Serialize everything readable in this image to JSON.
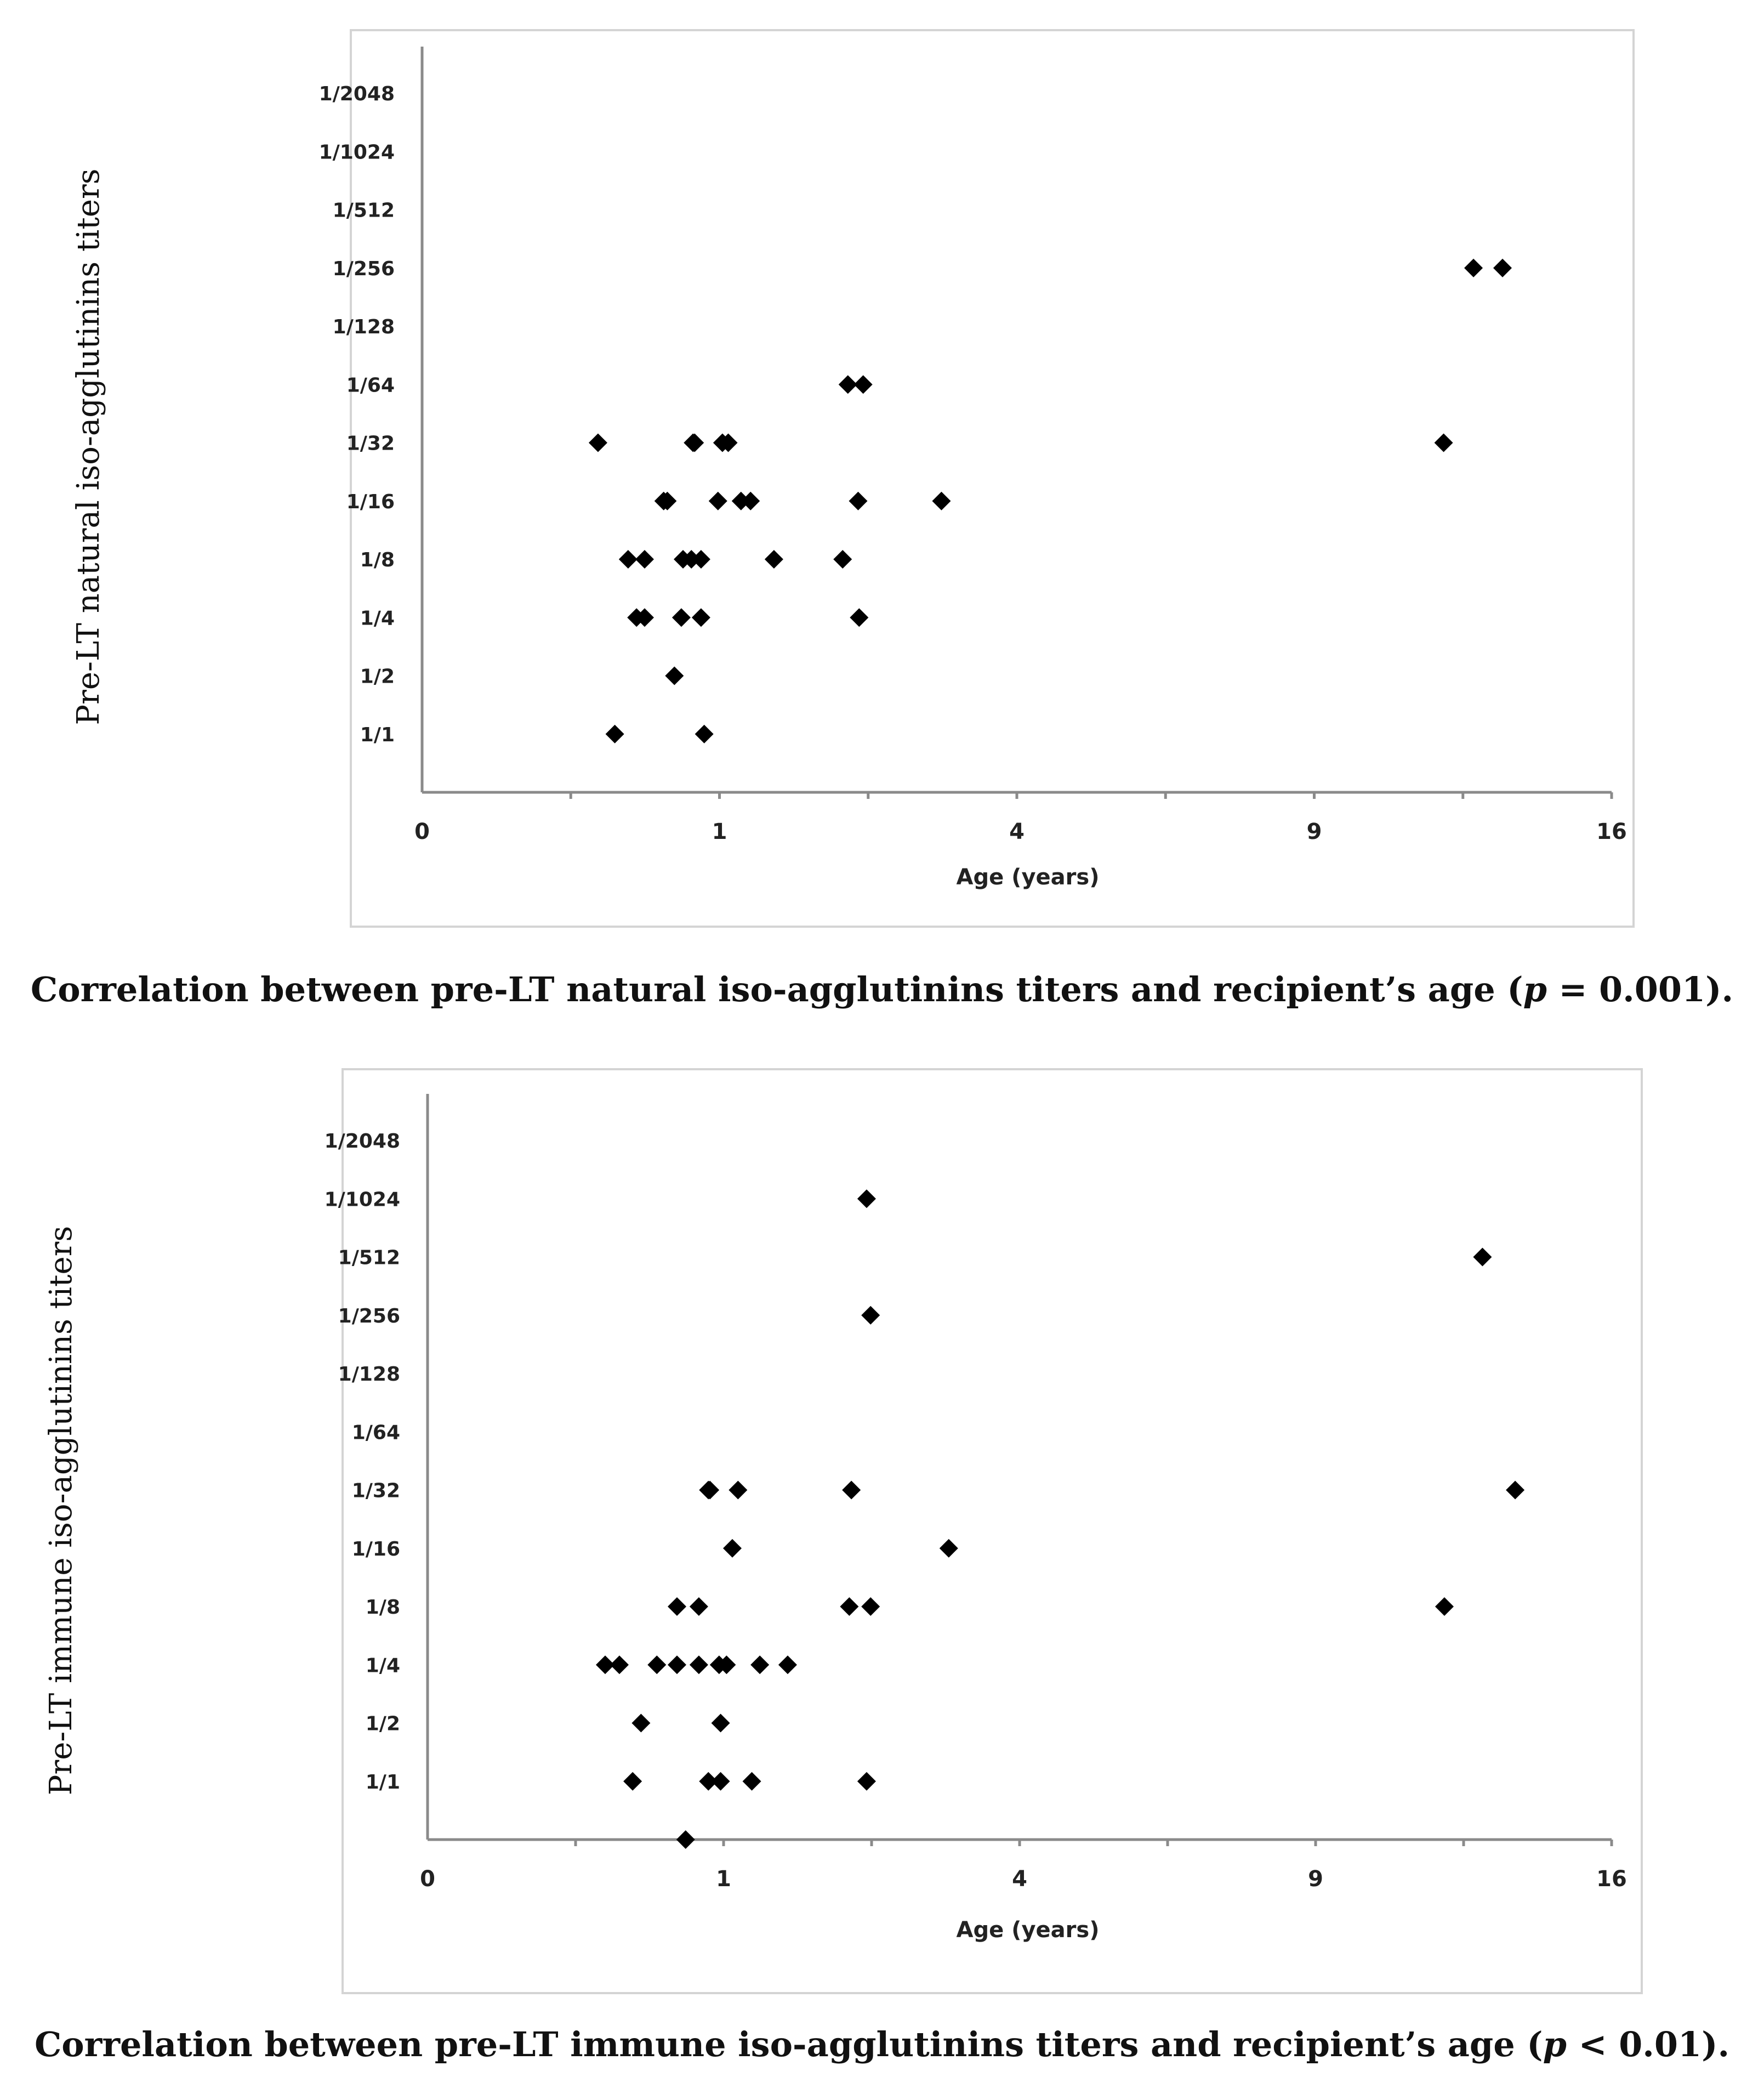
{
  "chart_data": [
    {
      "type": "scatter",
      "marker": "diamond",
      "ylabel": "Pre-LT natural iso-agglutinins titers",
      "xlabel": "Age (years)",
      "x_ticks": [
        "0",
        "1",
        "4",
        "9",
        "16"
      ],
      "x_scale": "sqrt",
      "xlim": [
        0,
        16
      ],
      "y_ticks": [
        "1/1",
        "1/2",
        "1/4",
        "1/8",
        "1/16",
        "1/32",
        "1/64",
        "1/128",
        "1/256",
        "1/512",
        "1/1024",
        "1/2048"
      ],
      "y_scale": "titer-index (1/1 = 1 … 1/2048 = 12, 0 = below 1/1)",
      "ylim": [
        0,
        12.8
      ],
      "points": [
        {
          "x": 0.35,
          "y": 6
        },
        {
          "x": 0.83,
          "y": 6
        },
        {
          "x": 0.84,
          "y": 6
        },
        {
          "x": 1.02,
          "y": 6
        },
        {
          "x": 1.06,
          "y": 6
        },
        {
          "x": 2.05,
          "y": 7
        },
        {
          "x": 2.2,
          "y": 7
        },
        {
          "x": 12.5,
          "y": 9
        },
        {
          "x": 13.2,
          "y": 9
        },
        {
          "x": 11.8,
          "y": 6
        },
        {
          "x": 0.66,
          "y": 5
        },
        {
          "x": 0.68,
          "y": 5
        },
        {
          "x": 0.99,
          "y": 5
        },
        {
          "x": 1.15,
          "y": 5
        },
        {
          "x": 1.22,
          "y": 5
        },
        {
          "x": 2.15,
          "y": 5
        },
        {
          "x": 3.05,
          "y": 5
        },
        {
          "x": 0.48,
          "y": 4
        },
        {
          "x": 0.56,
          "y": 4
        },
        {
          "x": 0.77,
          "y": 4
        },
        {
          "x": 0.82,
          "y": 4
        },
        {
          "x": 0.88,
          "y": 4
        },
        {
          "x": 1.4,
          "y": 4
        },
        {
          "x": 2.0,
          "y": 4
        },
        {
          "x": 0.52,
          "y": 3
        },
        {
          "x": 0.56,
          "y": 3
        },
        {
          "x": 0.76,
          "y": 3
        },
        {
          "x": 0.88,
          "y": 3
        },
        {
          "x": 2.16,
          "y": 3
        },
        {
          "x": 0.72,
          "y": 2
        },
        {
          "x": 0.42,
          "y": 1
        },
        {
          "x": 0.9,
          "y": 1
        }
      ],
      "caption": {
        "text": "Correlation between pre-LT natural iso-agglutinins titers and recipient’s age (",
        "p": "p",
        "rest": " = 0.001)."
      }
    },
    {
      "type": "scatter",
      "marker": "diamond",
      "ylabel": "Pre-LT immune iso-agglutinins titers",
      "xlabel": "Age (years)",
      "x_ticks": [
        "0",
        "1",
        "4",
        "9",
        "16"
      ],
      "x_scale": "sqrt",
      "xlim": [
        0,
        16
      ],
      "y_ticks": [
        "1/1",
        "1/2",
        "1/4",
        "1/8",
        "1/16",
        "1/32",
        "1/64",
        "1/128",
        "1/256",
        "1/512",
        "1/1024",
        "1/2048"
      ],
      "y_scale": "titer-index (1/1 = 1 … 1/2048 = 12, 0 = below 1/1)",
      "ylim": [
        0,
        12.8
      ],
      "points": [
        {
          "x": 2.2,
          "y": 11
        },
        {
          "x": 12.7,
          "y": 10
        },
        {
          "x": 2.24,
          "y": 9
        },
        {
          "x": 0.9,
          "y": 6
        },
        {
          "x": 0.91,
          "y": 6
        },
        {
          "x": 1.1,
          "y": 6
        },
        {
          "x": 2.05,
          "y": 6
        },
        {
          "x": 13.5,
          "y": 6
        },
        {
          "x": 1.06,
          "y": 5
        },
        {
          "x": 3.1,
          "y": 5
        },
        {
          "x": 0.71,
          "y": 4
        },
        {
          "x": 0.84,
          "y": 4
        },
        {
          "x": 2.03,
          "y": 4
        },
        {
          "x": 2.24,
          "y": 4
        },
        {
          "x": 11.8,
          "y": 4
        },
        {
          "x": 0.36,
          "y": 3
        },
        {
          "x": 0.42,
          "y": 3
        },
        {
          "x": 0.6,
          "y": 3
        },
        {
          "x": 0.71,
          "y": 3
        },
        {
          "x": 0.84,
          "y": 3
        },
        {
          "x": 0.97,
          "y": 3
        },
        {
          "x": 1.02,
          "y": 3
        },
        {
          "x": 1.26,
          "y": 3
        },
        {
          "x": 1.48,
          "y": 3
        },
        {
          "x": 0.52,
          "y": 2
        },
        {
          "x": 0.98,
          "y": 2
        },
        {
          "x": 0.48,
          "y": 1
        },
        {
          "x": 0.9,
          "y": 1
        },
        {
          "x": 0.98,
          "y": 1
        },
        {
          "x": 1.2,
          "y": 1
        },
        {
          "x": 2.2,
          "y": 1
        },
        {
          "x": 0.76,
          "y": 0
        }
      ],
      "caption": {
        "text": "Correlation between pre-LT immune iso-agglutinins titers and recipient’s age (",
        "p": "p",
        "rest": " < 0.01)."
      }
    }
  ]
}
